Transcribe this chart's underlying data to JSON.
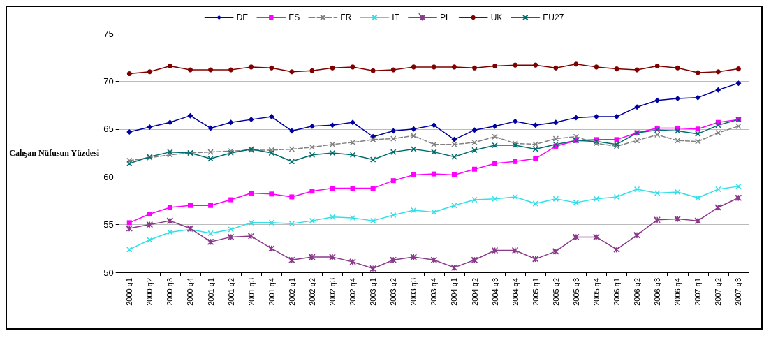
{
  "chart_data": {
    "type": "line",
    "ylabel": "Calışan Nüfusun Yüzdesi",
    "categories": [
      "2000 q1",
      "2000 q2",
      "2000 q3",
      "2000 q4",
      "2001 q1",
      "2001 q2",
      "2001 q3",
      "2001 q4",
      "2002 q1",
      "2002 q2",
      "2002 q3",
      "2002 q4",
      "2003 q1",
      "2003 q2",
      "2003 q3",
      "2003 q4",
      "2004 q1",
      "2004 q2",
      "2004 q3",
      "2004 q4",
      "2005 q1",
      "2005 q2",
      "2005 q3",
      "2005 q4",
      "2006 q1",
      "2006 q2",
      "2006 q3",
      "2006 q4",
      "2007 q1",
      "2007 q2",
      "2007 q3"
    ],
    "ylim": [
      50,
      75
    ],
    "yticks": [
      50,
      55,
      60,
      65,
      70,
      75
    ],
    "grid": "y",
    "legend": "top",
    "series": [
      {
        "name": "DE",
        "color": "#0000a0",
        "marker": "diamond",
        "line_style": "solid",
        "values": [
          64.7,
          65.2,
          65.7,
          66.4,
          65.1,
          65.7,
          66.0,
          66.3,
          64.8,
          65.3,
          65.4,
          65.7,
          64.2,
          64.8,
          65.0,
          65.4,
          63.9,
          64.9,
          65.3,
          65.8,
          65.4,
          65.7,
          66.2,
          66.3,
          66.3,
          67.3,
          68.0,
          68.2,
          68.3,
          69.1,
          69.8
        ]
      },
      {
        "name": "ES",
        "color": "#ff00ff",
        "marker": "square",
        "line_style": "solid",
        "values": [
          55.2,
          56.1,
          56.8,
          57.0,
          57.0,
          57.6,
          58.3,
          58.2,
          57.9,
          58.5,
          58.8,
          58.8,
          58.8,
          59.6,
          60.2,
          60.3,
          60.2,
          60.8,
          61.4,
          61.6,
          61.9,
          63.2,
          63.8,
          63.9,
          63.9,
          64.6,
          65.1,
          65.1,
          65.0,
          65.7,
          66.0
        ]
      },
      {
        "name": "FR",
        "color": "#808080",
        "marker": "cross",
        "line_style": "dashed",
        "values": [
          61.7,
          62.0,
          62.3,
          62.5,
          62.6,
          62.7,
          62.8,
          62.8,
          62.9,
          63.1,
          63.4,
          63.6,
          63.9,
          64.0,
          64.3,
          63.4,
          63.4,
          63.6,
          64.2,
          63.5,
          63.4,
          64.0,
          64.2,
          63.5,
          63.2,
          63.8,
          64.4,
          63.8,
          63.7,
          64.6,
          65.3
        ]
      },
      {
        "name": "IT",
        "color": "#33e0e8",
        "marker": "cross",
        "line_style": "solid",
        "values": [
          52.4,
          53.4,
          54.2,
          54.5,
          54.1,
          54.5,
          55.2,
          55.2,
          55.1,
          55.4,
          55.8,
          55.7,
          55.4,
          56.0,
          56.5,
          56.3,
          57.0,
          57.6,
          57.7,
          57.9,
          57.2,
          57.7,
          57.3,
          57.7,
          57.9,
          58.7,
          58.3,
          58.4,
          57.8,
          58.7,
          59.0
        ]
      },
      {
        "name": "PL",
        "color": "#8b3a8b",
        "marker": "star",
        "line_style": "solid",
        "values": [
          54.6,
          55.0,
          55.4,
          54.6,
          53.2,
          53.7,
          53.8,
          52.5,
          51.3,
          51.6,
          51.6,
          51.1,
          50.4,
          51.3,
          51.6,
          51.3,
          50.5,
          51.3,
          52.3,
          52.3,
          51.4,
          52.2,
          53.7,
          53.7,
          52.4,
          53.9,
          55.5,
          55.6,
          55.4,
          56.8,
          57.8
        ]
      },
      {
        "name": "UK",
        "color": "#800000",
        "marker": "circle",
        "line_style": "solid",
        "values": [
          70.8,
          71.0,
          71.6,
          71.2,
          71.2,
          71.2,
          71.5,
          71.4,
          71.0,
          71.1,
          71.4,
          71.5,
          71.1,
          71.2,
          71.5,
          71.5,
          71.5,
          71.4,
          71.6,
          71.7,
          71.7,
          71.4,
          71.8,
          71.5,
          71.3,
          71.2,
          71.6,
          71.4,
          70.9,
          71.0,
          71.3
        ]
      },
      {
        "name": "EU27",
        "color": "#006d6d",
        "marker": "cross",
        "line_style": "solid",
        "values": [
          61.4,
          62.1,
          62.6,
          62.5,
          61.9,
          62.5,
          62.9,
          62.5,
          61.6,
          62.3,
          62.5,
          62.3,
          61.8,
          62.6,
          62.9,
          62.6,
          62.1,
          62.8,
          63.3,
          63.3,
          62.9,
          63.4,
          63.8,
          63.7,
          63.4,
          64.6,
          64.9,
          64.8,
          64.5,
          65.4,
          66.0
        ]
      }
    ]
  }
}
